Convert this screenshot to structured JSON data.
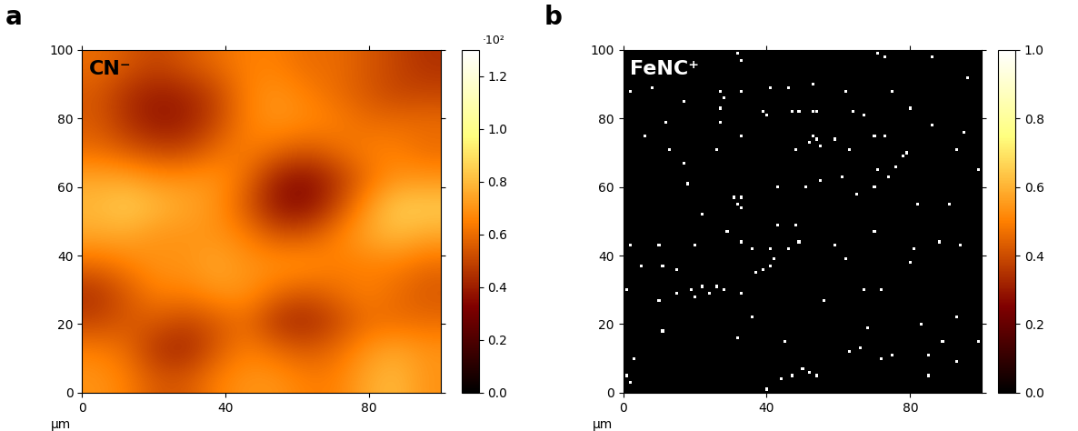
{
  "chart_data": [
    {
      "type": "heatmap",
      "panel_label": "a",
      "title": "CN⁻",
      "x_label": "µm",
      "xlim": [
        0,
        100
      ],
      "xticks": [
        0,
        40,
        80
      ],
      "ylim": [
        0,
        100
      ],
      "yticks": [
        0,
        20,
        40,
        60,
        80,
        100
      ],
      "cells": [
        [
          0.6,
          0.55,
          0.5,
          0.55,
          0.6,
          0.65,
          0.65,
          0.6,
          0.6,
          0.55,
          0.5,
          0.45
        ],
        [
          0.55,
          0.45,
          0.4,
          0.42,
          0.5,
          0.65,
          0.7,
          0.65,
          0.6,
          0.55,
          0.5,
          0.5
        ],
        [
          0.55,
          0.45,
          0.38,
          0.4,
          0.5,
          0.65,
          0.7,
          0.68,
          0.65,
          0.6,
          0.6,
          0.6
        ],
        [
          0.6,
          0.55,
          0.5,
          0.5,
          0.6,
          0.65,
          0.6,
          0.55,
          0.6,
          0.65,
          0.65,
          0.6
        ],
        [
          0.75,
          0.75,
          0.7,
          0.7,
          0.7,
          0.6,
          0.4,
          0.35,
          0.45,
          0.6,
          0.7,
          0.7
        ],
        [
          0.8,
          0.85,
          0.8,
          0.75,
          0.7,
          0.55,
          0.38,
          0.35,
          0.5,
          0.7,
          0.85,
          0.85
        ],
        [
          0.75,
          0.75,
          0.7,
          0.7,
          0.7,
          0.65,
          0.55,
          0.55,
          0.65,
          0.75,
          0.8,
          0.75
        ],
        [
          0.6,
          0.65,
          0.7,
          0.7,
          0.75,
          0.7,
          0.7,
          0.7,
          0.65,
          0.65,
          0.65,
          0.6
        ],
        [
          0.45,
          0.55,
          0.65,
          0.65,
          0.7,
          0.7,
          0.6,
          0.55,
          0.6,
          0.65,
          0.6,
          0.55
        ],
        [
          0.5,
          0.55,
          0.55,
          0.5,
          0.55,
          0.6,
          0.45,
          0.42,
          0.5,
          0.6,
          0.6,
          0.6
        ],
        [
          0.65,
          0.6,
          0.45,
          0.42,
          0.55,
          0.65,
          0.6,
          0.55,
          0.6,
          0.7,
          0.75,
          0.7
        ],
        [
          0.7,
          0.65,
          0.55,
          0.55,
          0.65,
          0.7,
          0.7,
          0.65,
          0.65,
          0.75,
          0.8,
          0.7
        ]
      ],
      "colorbar": {
        "range": [
          0,
          1.3
        ],
        "ticks": [
          0.0,
          0.2,
          0.4,
          0.6,
          0.8,
          1.0,
          1.2
        ],
        "multiplier_label": "·10²"
      }
    },
    {
      "type": "scatter",
      "panel_label": "b",
      "title": "FeNC⁺",
      "x_label": "µm",
      "xlim": [
        0,
        100
      ],
      "xticks": [
        0,
        40,
        80
      ],
      "ylim": [
        0,
        100
      ],
      "yticks": [
        0,
        20,
        40,
        60,
        80,
        100
      ],
      "points": [
        [
          32,
          99
        ],
        [
          33,
          97
        ],
        [
          71,
          99
        ],
        [
          73,
          98
        ],
        [
          86,
          98
        ],
        [
          2,
          88
        ],
        [
          8,
          89
        ],
        [
          27,
          88
        ],
        [
          28,
          86
        ],
        [
          33,
          88
        ],
        [
          41,
          89
        ],
        [
          46,
          89
        ],
        [
          53,
          90
        ],
        [
          62,
          88
        ],
        [
          75,
          88
        ],
        [
          96,
          92
        ],
        [
          17,
          85
        ],
        [
          27,
          83
        ],
        [
          39,
          82
        ],
        [
          40,
          81
        ],
        [
          47,
          82
        ],
        [
          49,
          82
        ],
        [
          53,
          82
        ],
        [
          54,
          82
        ],
        [
          64,
          82
        ],
        [
          67,
          81
        ],
        [
          12,
          79
        ],
        [
          27,
          79
        ],
        [
          80,
          83
        ],
        [
          95,
          76
        ],
        [
          6,
          75
        ],
        [
          33,
          75
        ],
        [
          53,
          75
        ],
        [
          54,
          74
        ],
        [
          52,
          73
        ],
        [
          55,
          72
        ],
        [
          63,
          71
        ],
        [
          59,
          74
        ],
        [
          70,
          75
        ],
        [
          73,
          75
        ],
        [
          13,
          71
        ],
        [
          26,
          71
        ],
        [
          48,
          71
        ],
        [
          78,
          69
        ],
        [
          79,
          70
        ],
        [
          93,
          71
        ],
        [
          17,
          67
        ],
        [
          71,
          65
        ],
        [
          76,
          66
        ],
        [
          74,
          63
        ],
        [
          99,
          65
        ],
        [
          18,
          61
        ],
        [
          43,
          60
        ],
        [
          51,
          60
        ],
        [
          55,
          62
        ],
        [
          61,
          63
        ],
        [
          70,
          60
        ],
        [
          22,
          52
        ],
        [
          32,
          55
        ],
        [
          31,
          57
        ],
        [
          33,
          57
        ],
        [
          33,
          54
        ],
        [
          82,
          55
        ],
        [
          91,
          55
        ],
        [
          29,
          47
        ],
        [
          10,
          43
        ],
        [
          20,
          43
        ],
        [
          33,
          44
        ],
        [
          41,
          42
        ],
        [
          46,
          42
        ],
        [
          49,
          44
        ],
        [
          48,
          49
        ],
        [
          43,
          49
        ],
        [
          36,
          42
        ],
        [
          42,
          39
        ],
        [
          59,
          43
        ],
        [
          70,
          47
        ],
        [
          62,
          39
        ],
        [
          81,
          42
        ],
        [
          80,
          38
        ],
        [
          94,
          43
        ],
        [
          2,
          43
        ],
        [
          5,
          37
        ],
        [
          11,
          37
        ],
        [
          15,
          36
        ],
        [
          19,
          30
        ],
        [
          22,
          31
        ],
        [
          24,
          29
        ],
        [
          26,
          31
        ],
        [
          28,
          30
        ],
        [
          33,
          29
        ],
        [
          20,
          28
        ],
        [
          15,
          29
        ],
        [
          67,
          30
        ],
        [
          72,
          30
        ],
        [
          37,
          35
        ],
        [
          39,
          36
        ],
        [
          41,
          37
        ],
        [
          1,
          30
        ],
        [
          10,
          27
        ],
        [
          56,
          27
        ],
        [
          32,
          16
        ],
        [
          11,
          18
        ],
        [
          45,
          15
        ],
        [
          54,
          5
        ],
        [
          50,
          7
        ],
        [
          52,
          6
        ],
        [
          47,
          5
        ],
        [
          44,
          4
        ],
        [
          40,
          1
        ],
        [
          3,
          10
        ],
        [
          1,
          5
        ],
        [
          2,
          3
        ],
        [
          36,
          22
        ],
        [
          63,
          12
        ],
        [
          66,
          13
        ],
        [
          68,
          19
        ],
        [
          72,
          10
        ],
        [
          75,
          11
        ],
        [
          83,
          20
        ],
        [
          85,
          5
        ],
        [
          85,
          11
        ],
        [
          89,
          15
        ],
        [
          93,
          22
        ],
        [
          99,
          15
        ],
        [
          88,
          44
        ],
        [
          86,
          78
        ],
        [
          65,
          58
        ],
        [
          93,
          9
        ]
      ],
      "point_value": 1.0,
      "colorbar": {
        "range": [
          0,
          1.0
        ],
        "ticks": [
          0.0,
          0.2,
          0.4,
          0.6,
          0.8,
          1.0
        ]
      }
    }
  ]
}
